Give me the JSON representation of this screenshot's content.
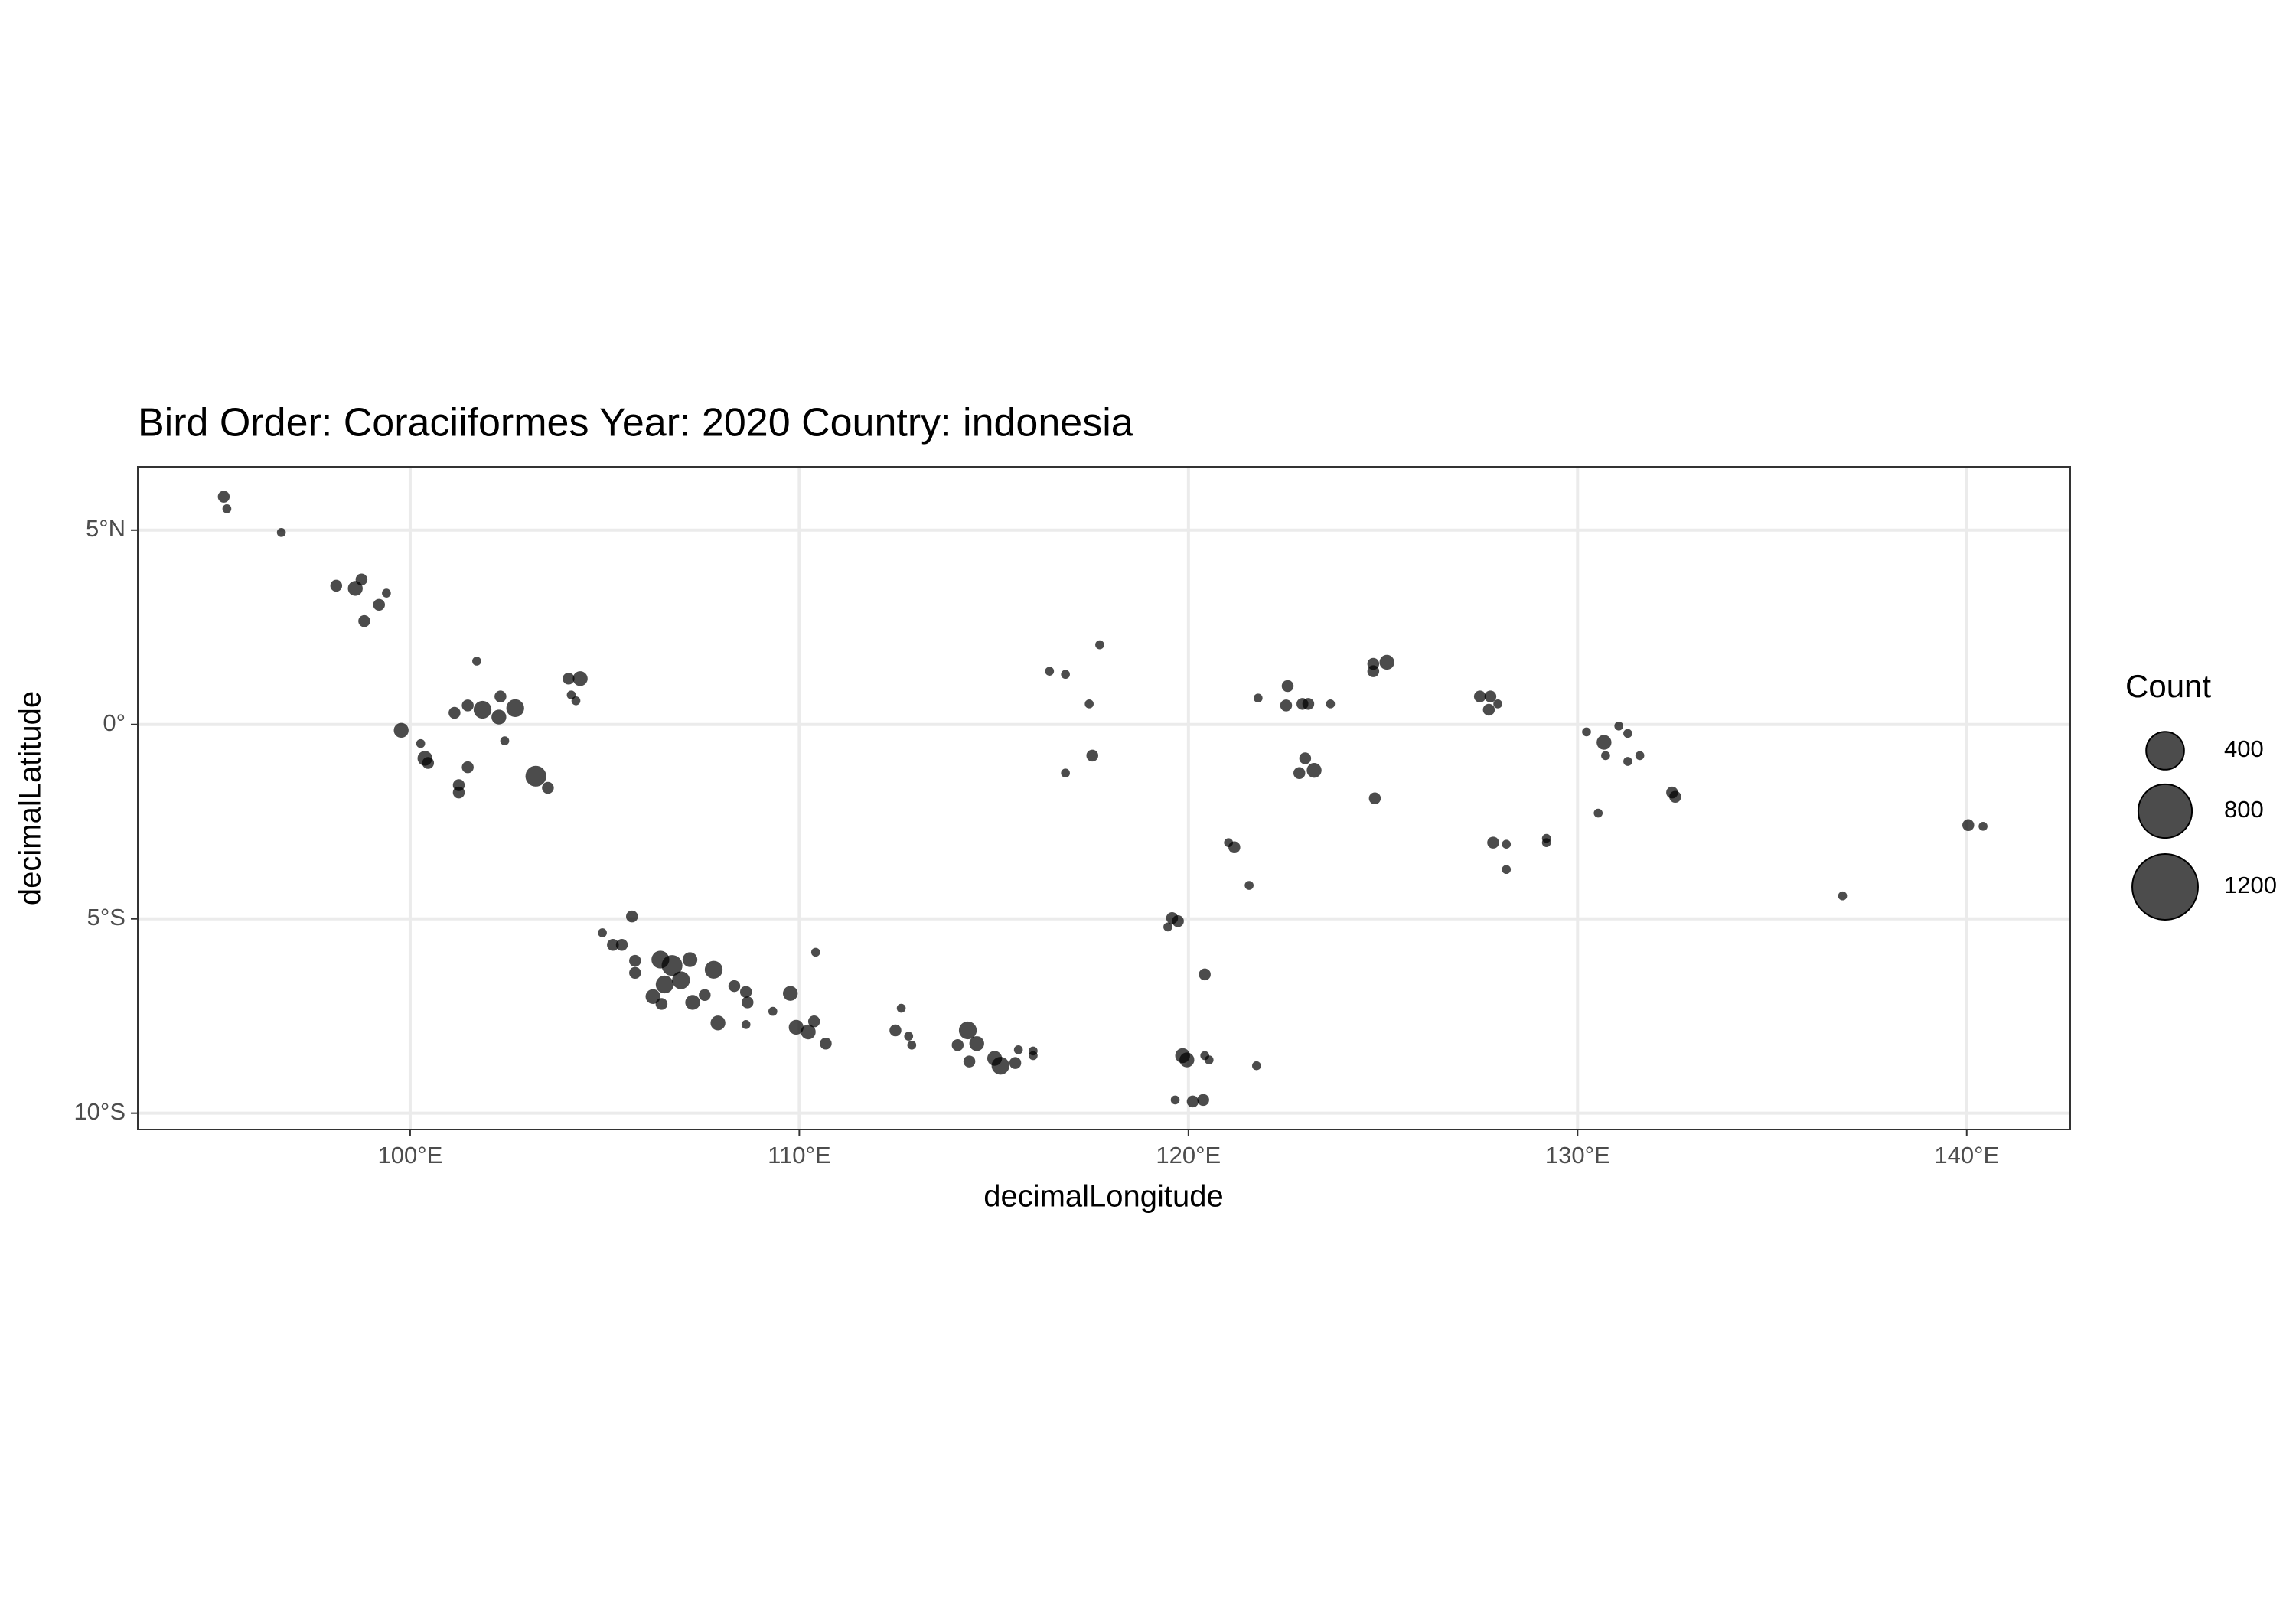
{
  "chart_data": {
    "type": "scatter",
    "title": "Bird Order: Coraciiformes Year: 2020 Country: indonesia",
    "x_label": "decimalLongitude",
    "y_label": "decimalLatitude",
    "color": "#000000",
    "opacity": 0.7,
    "grid": true,
    "xlim": [
      93.0,
      142.66
    ],
    "ylim": [
      -10.42,
      6.63
    ],
    "xticks": [
      {
        "value": 100,
        "label": "100°E"
      },
      {
        "value": 110,
        "label": "110°E"
      },
      {
        "value": 120,
        "label": "120°E"
      },
      {
        "value": 130,
        "label": "130°E"
      },
      {
        "value": 140,
        "label": "140°E"
      }
    ],
    "yticks": [
      {
        "value": -10,
        "label": "10°S"
      },
      {
        "value": -5,
        "label": "5°S"
      },
      {
        "value": 0,
        "label": "0°"
      },
      {
        "value": 5,
        "label": "5°N"
      }
    ],
    "size_legend": {
      "title": "Count",
      "values": [
        400,
        800,
        1200
      ]
    },
    "x": [
      95.21,
      95.29,
      96.69,
      98.1,
      98.59,
      98.75,
      99.2,
      99.39,
      98.82,
      99.77,
      100.27,
      100.38,
      100.46,
      101.14,
      101.48,
      101.71,
      101.86,
      101.48,
      101.25,
      101.25,
      102.32,
      102.28,
      102.7,
      102.43,
      103.23,
      103.54,
      104.07,
      104.37,
      104.14,
      104.26,
      104.94,
      105.21,
      105.44,
      105.7,
      105.78,
      105.78,
      106.43,
      106.73,
      106.96,
      106.54,
      106.24,
      106.46,
      107.19,
      107.8,
      107.26,
      107.57,
      107.91,
      108.33,
      108.63,
      108.67,
      108.63,
      109.32,
      109.77,
      109.92,
      110.23,
      110.38,
      110.42,
      110.68,
      112.47,
      112.62,
      112.89,
      112.81,
      114.33,
      114.07,
      114.37,
      114.56,
      115.02,
      115.17,
      115.55,
      115.63,
      116.01,
      116.01,
      116.43,
      116.84,
      117.72,
      117.45,
      116.84,
      117.53,
      119.47,
      119.58,
      119.73,
      120.42,
      119.85,
      119.96,
      120.42,
      120.53,
      121.75,
      119.66,
      120.11,
      120.38,
      121.03,
      121.18,
      121.56,
      121.79,
      122.55,
      122.51,
      122.93,
      123.08,
      123.65,
      123.0,
      122.85,
      123.23,
      124.75,
      124.75,
      125.1,
      124.79,
      127.49,
      127.76,
      127.72,
      127.95,
      127.83,
      128.17,
      128.17,
      129.2,
      129.2,
      130.23,
      130.68,
      130.72,
      130.53,
      131.06,
      131.29,
      131.29,
      131.6,
      132.43,
      132.51,
      136.81,
      140.04,
      140.42
    ],
    "y": [
      5.86,
      5.55,
      4.94,
      3.57,
      3.5,
      3.73,
      3.08,
      3.38,
      2.66,
      -0.15,
      -0.49,
      -0.87,
      -0.99,
      0.3,
      0.49,
      1.63,
      0.38,
      -1.1,
      -1.56,
      -1.75,
      0.72,
      0.19,
      0.42,
      -0.42,
      -1.33,
      -1.63,
      1.18,
      1.18,
      0.76,
      0.61,
      -5.36,
      -5.67,
      -5.67,
      -4.94,
      -6.08,
      -6.39,
      -6.05,
      -6.2,
      -6.58,
      -6.69,
      -7.0,
      -7.19,
      -6.05,
      -6.31,
      -7.15,
      -6.96,
      -7.68,
      -6.73,
      -6.88,
      -7.15,
      -7.72,
      -7.38,
      -6.92,
      -7.79,
      -7.91,
      -7.64,
      -5.86,
      -8.21,
      -7.87,
      -7.3,
      -8.25,
      -8.02,
      -7.87,
      -8.25,
      -8.67,
      -8.21,
      -8.59,
      -8.78,
      -8.71,
      -8.37,
      -8.4,
      -8.52,
      1.37,
      1.29,
      2.05,
      0.53,
      -1.25,
      -0.8,
      -5.21,
      -4.98,
      -5.06,
      -6.43,
      -8.52,
      -8.63,
      -8.52,
      -8.63,
      -8.78,
      -9.66,
      -9.7,
      -9.66,
      -3.04,
      -3.16,
      -4.14,
      0.68,
      0.99,
      0.49,
      0.53,
      0.53,
      0.53,
      -0.87,
      -1.25,
      -1.18,
      1.56,
      1.37,
      1.6,
      -1.9,
      0.72,
      0.72,
      0.38,
      0.53,
      -3.04,
      -3.08,
      -3.73,
      -2.93,
      -3.04,
      -0.19,
      -0.46,
      -0.8,
      -2.28,
      -0.04,
      -0.23,
      -0.95,
      -0.8,
      -1.75,
      -1.86,
      -4.41,
      -2.59,
      -2.62
    ],
    "sizes": [
      39,
      22,
      22,
      39,
      61,
      39,
      39,
      22,
      39,
      61,
      22,
      61,
      39,
      39,
      39,
      22,
      88,
      39,
      39,
      39,
      39,
      61,
      88,
      22,
      120,
      39,
      39,
      61,
      22,
      22,
      22,
      39,
      39,
      39,
      39,
      39,
      88,
      120,
      88,
      88,
      61,
      39,
      61,
      88,
      61,
      39,
      61,
      39,
      39,
      39,
      22,
      22,
      61,
      61,
      61,
      39,
      22,
      39,
      39,
      22,
      22,
      22,
      88,
      39,
      39,
      61,
      61,
      88,
      39,
      22,
      22,
      22,
      22,
      22,
      22,
      22,
      22,
      39,
      22,
      39,
      39,
      39,
      61,
      61,
      22,
      22,
      22,
      22,
      39,
      39,
      22,
      39,
      22,
      22,
      39,
      39,
      39,
      39,
      22,
      39,
      39,
      61,
      39,
      39,
      61,
      39,
      39,
      39,
      39,
      22,
      39,
      22,
      22,
      22,
      22,
      22,
      61,
      22,
      22,
      22,
      22,
      22,
      22,
      39,
      39,
      22,
      39,
      22
    ]
  }
}
